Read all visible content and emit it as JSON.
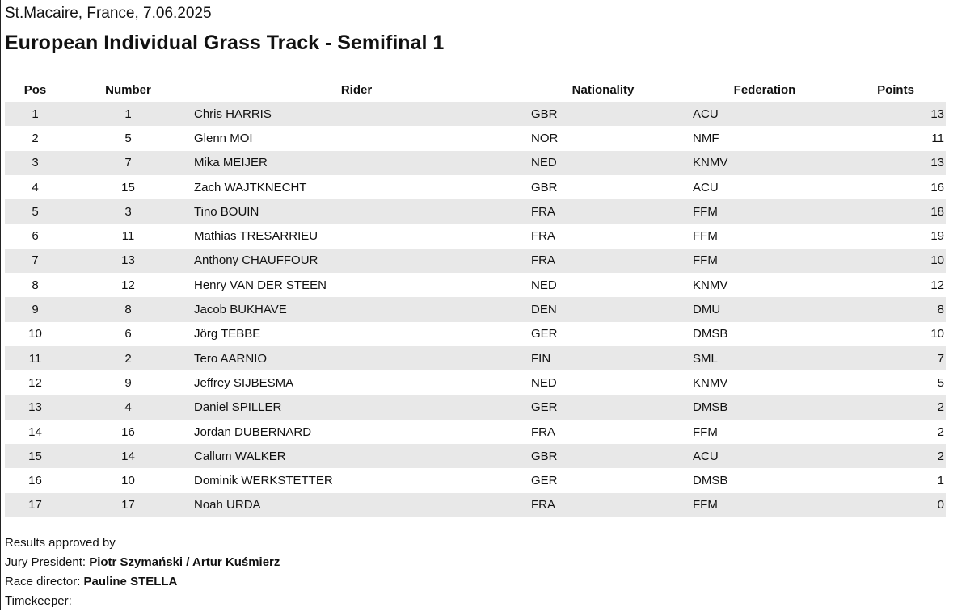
{
  "header": {
    "location_date": "St.Macaire, France, 7.06.2025",
    "title": "European Individual Grass Track - Semifinal 1"
  },
  "table": {
    "columns": {
      "pos": "Pos",
      "number": "Number",
      "rider": "Rider",
      "nationality": "Nationality",
      "federation": "Federation",
      "points": "Points"
    },
    "rows": [
      {
        "pos": "1",
        "number": "1",
        "rider": "Chris HARRIS",
        "nationality": "GBR",
        "federation": "ACU",
        "points": "13"
      },
      {
        "pos": "2",
        "number": "5",
        "rider": "Glenn MOI",
        "nationality": "NOR",
        "federation": "NMF",
        "points": "11"
      },
      {
        "pos": "3",
        "number": "7",
        "rider": "Mika MEIJER",
        "nationality": "NED",
        "federation": "KNMV",
        "points": "13"
      },
      {
        "pos": "4",
        "number": "15",
        "rider": "Zach WAJTKNECHT",
        "nationality": "GBR",
        "federation": "ACU",
        "points": "16"
      },
      {
        "pos": "5",
        "number": "3",
        "rider": "Tino BOUIN",
        "nationality": "FRA",
        "federation": "FFM",
        "points": "18"
      },
      {
        "pos": "6",
        "number": "11",
        "rider": "Mathias TRESARRIEU",
        "nationality": "FRA",
        "federation": "FFM",
        "points": "19"
      },
      {
        "pos": "7",
        "number": "13",
        "rider": "Anthony CHAUFFOUR",
        "nationality": "FRA",
        "federation": "FFM",
        "points": "10"
      },
      {
        "pos": "8",
        "number": "12",
        "rider": "Henry VAN DER STEEN",
        "nationality": "NED",
        "federation": "KNMV",
        "points": "12"
      },
      {
        "pos": "9",
        "number": "8",
        "rider": "Jacob BUKHAVE",
        "nationality": "DEN",
        "federation": "DMU",
        "points": "8"
      },
      {
        "pos": "10",
        "number": "6",
        "rider": "Jörg TEBBE",
        "nationality": "GER",
        "federation": "DMSB",
        "points": "10"
      },
      {
        "pos": "11",
        "number": "2",
        "rider": "Tero AARNIO",
        "nationality": "FIN",
        "federation": "SML",
        "points": "7"
      },
      {
        "pos": "12",
        "number": "9",
        "rider": "Jeffrey SIJBESMA",
        "nationality": "NED",
        "federation": "KNMV",
        "points": "5"
      },
      {
        "pos": "13",
        "number": "4",
        "rider": "Daniel SPILLER",
        "nationality": "GER",
        "federation": "DMSB",
        "points": "2"
      },
      {
        "pos": "14",
        "number": "16",
        "rider": "Jordan DUBERNARD",
        "nationality": "FRA",
        "federation": "FFM",
        "points": "2"
      },
      {
        "pos": "15",
        "number": "14",
        "rider": "Callum WALKER",
        "nationality": "GBR",
        "federation": "ACU",
        "points": "2"
      },
      {
        "pos": "16",
        "number": "10",
        "rider": "Dominik WERKSTETTER",
        "nationality": "GER",
        "federation": "DMSB",
        "points": "1"
      },
      {
        "pos": "17",
        "number": "17",
        "rider": "Noah URDA",
        "nationality": "FRA",
        "federation": "FFM",
        "points": "0"
      }
    ]
  },
  "footer": {
    "approved_label": "Results approved by",
    "jury_label": "Jury President: ",
    "jury_value": "Piotr Szymański / Artur Kuśmierz",
    "director_label": "Race director: ",
    "director_value": "Pauline STELLA",
    "timekeeper_label": "Timekeeper:"
  }
}
